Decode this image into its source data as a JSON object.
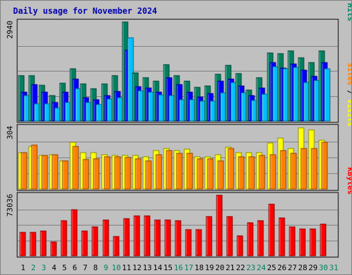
{
  "chart_data": {
    "type": "bar",
    "title": "Daily usage for November 2024",
    "categories": [
      "1",
      "2",
      "3",
      "4",
      "5",
      "6",
      "7",
      "8",
      "9",
      "10",
      "11",
      "12",
      "13",
      "14",
      "15",
      "16",
      "17",
      "18",
      "19",
      "20",
      "21",
      "22",
      "23",
      "24",
      "25",
      "26",
      "27",
      "28",
      "29",
      "30",
      "31"
    ],
    "weekend_days": [
      "2",
      "3",
      "9",
      "10",
      "16",
      "17",
      "23",
      "24",
      "30",
      "31"
    ],
    "panels": [
      {
        "id": "hits-panel",
        "max_label": "2940",
        "ylim": [
          0,
          2940
        ],
        "side_labels": [
          {
            "text": "Pages",
            "color": "#00c0ff"
          },
          {
            "text": " / ",
            "color": "#000000"
          },
          {
            "text": "Files",
            "color": "#0000ff"
          },
          {
            "text": " / ",
            "color": "#000000"
          },
          {
            "text": "Hits",
            "color": "#008060"
          }
        ],
        "series": [
          {
            "name": "Hits",
            "color": "#008060",
            "values": [
              1340,
              1340,
              1060,
              760,
              1130,
              1550,
              1100,
              960,
              1100,
              1350,
              2940,
              1420,
              1290,
              1190,
              1670,
              1340,
              1190,
              1000,
              1050,
              1380,
              1650,
              1400,
              920,
              1290,
              2030,
              2010,
              2090,
              1870,
              1740,
              2090,
              0
            ]
          },
          {
            "name": "Files",
            "color": "#0000ff",
            "values": [
              860,
              1090,
              850,
              560,
              860,
              1240,
              700,
              640,
              760,
              880,
              2100,
              1020,
              970,
              850,
              1280,
              1080,
              850,
              710,
              820,
              1190,
              1240,
              1040,
              750,
              990,
              1730,
              1580,
              1700,
              1520,
              1320,
              1740,
              0
            ]
          },
          {
            "name": "Pages",
            "color": "#00c0ff",
            "values": [
              750,
              510,
              510,
              380,
              550,
              960,
              550,
              480,
              650,
              690,
              2470,
              890,
              860,
              770,
              750,
              630,
              630,
              600,
              590,
              840,
              1140,
              830,
              620,
              800,
              1620,
              1550,
              1600,
              1150,
              1210,
              1550,
              0
            ]
          }
        ]
      },
      {
        "id": "visits-panel",
        "max_label": "304",
        "ylim": [
          0,
          304
        ],
        "side_labels": [
          {
            "text": "Sites",
            "color": "#ff8000"
          },
          {
            "text": " / ",
            "color": "#000000"
          },
          {
            "text": "Visits",
            "color": "#ffff00"
          }
        ],
        "series": [
          {
            "name": "Visits",
            "color": "#ffff00",
            "values": [
              180,
              210,
              165,
              170,
              140,
              230,
              180,
              180,
              170,
              165,
              165,
              165,
              160,
              190,
              200,
              190,
              195,
              160,
              160,
              170,
              205,
              180,
              180,
              180,
              225,
              250,
              200,
              300,
              290,
              240,
              0
            ]
          },
          {
            "name": "Sites",
            "color": "#ff8000",
            "values": [
              180,
              215,
              165,
              170,
              140,
              210,
              145,
              150,
              160,
              160,
              155,
              150,
              140,
              170,
              190,
              175,
              175,
              150,
              150,
              140,
              200,
              160,
              160,
              165,
              170,
              190,
              175,
              200,
              200,
              230,
              0
            ]
          }
        ]
      },
      {
        "id": "kbytes-panel",
        "max_label": "73036",
        "ylim": [
          0,
          73036
        ],
        "side_labels": [
          {
            "text": "KBytes",
            "color": "#ff0000"
          }
        ],
        "series": [
          {
            "name": "KBytes",
            "color": "#ff0000",
            "values": [
              28000,
              28500,
              30000,
              16500,
              42500,
              56000,
              29500,
              35000,
              43500,
              23500,
              45000,
              48000,
              48000,
              43000,
              43000,
              42500,
              31500,
              31500,
              47000,
              73036,
              47000,
              24000,
              40000,
              42500,
              62000,
              46000,
              35000,
              32500,
              32000,
              38500,
              0
            ]
          }
        ]
      }
    ]
  }
}
